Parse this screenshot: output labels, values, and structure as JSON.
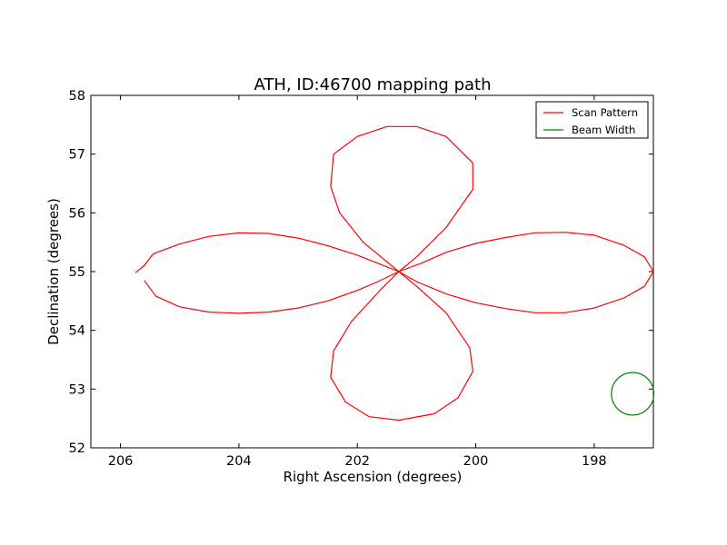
{
  "chart_data": {
    "type": "line",
    "title": "ATH, ID:46700 mapping path",
    "xlabel": "Right Ascension (degrees)",
    "ylabel": "Declination (degrees)",
    "xlim": [
      206.5,
      197
    ],
    "ylim": [
      52,
      58
    ],
    "x_inverted": true,
    "xticks": [
      206,
      204,
      202,
      200,
      198
    ],
    "yticks": [
      52,
      53,
      54,
      55,
      56,
      57,
      58
    ],
    "grid": false,
    "legend_position": "top-right",
    "series": [
      {
        "name": "Scan Pattern",
        "color": "#ff0000",
        "points": [
          [
            205.75,
            54.98
          ],
          [
            205.6,
            55.1
          ],
          [
            205.45,
            55.3
          ],
          [
            205.0,
            55.47
          ],
          [
            204.5,
            55.6
          ],
          [
            204.0,
            55.66
          ],
          [
            203.5,
            55.65
          ],
          [
            203.0,
            55.57
          ],
          [
            202.5,
            55.44
          ],
          [
            202.0,
            55.28
          ],
          [
            201.6,
            55.12
          ],
          [
            201.3,
            55.0
          ],
          [
            200.9,
            55.15
          ],
          [
            200.5,
            55.33
          ],
          [
            200.0,
            55.48
          ],
          [
            199.5,
            55.58
          ],
          [
            199.0,
            55.66
          ],
          [
            198.5,
            55.67
          ],
          [
            198.0,
            55.62
          ],
          [
            197.5,
            55.45
          ],
          [
            197.15,
            55.25
          ],
          [
            197.0,
            55.0
          ],
          [
            197.15,
            54.75
          ],
          [
            197.5,
            54.55
          ],
          [
            198.0,
            54.38
          ],
          [
            198.5,
            54.3
          ],
          [
            199.0,
            54.3
          ],
          [
            199.5,
            54.37
          ],
          [
            200.0,
            54.47
          ],
          [
            200.5,
            54.62
          ],
          [
            201.0,
            54.83
          ],
          [
            201.3,
            55.0
          ],
          [
            201.65,
            54.83
          ],
          [
            202.0,
            54.68
          ],
          [
            202.5,
            54.5
          ],
          [
            203.0,
            54.38
          ],
          [
            203.5,
            54.31
          ],
          [
            204.0,
            54.29
          ],
          [
            204.5,
            54.31
          ],
          [
            205.0,
            54.4
          ],
          [
            205.4,
            54.58
          ],
          [
            205.6,
            54.85
          ],
          [
            205.55,
            54.6
          ],
          [
            205.6,
            54.85
          ]
        ]
      },
      {
        "name": "Beam Width",
        "color": "#008000",
        "points": []
      }
    ],
    "loops": {
      "top": [
        [
          201.3,
          55.0
        ],
        [
          201.0,
          55.25
        ],
        [
          200.5,
          55.75
        ],
        [
          200.05,
          56.4
        ],
        [
          200.05,
          56.85
        ],
        [
          200.5,
          57.3
        ],
        [
          201.0,
          57.47
        ],
        [
          201.5,
          57.47
        ],
        [
          202.0,
          57.3
        ],
        [
          202.4,
          57.0
        ],
        [
          202.45,
          56.45
        ],
        [
          202.3,
          56.0
        ],
        [
          201.9,
          55.5
        ],
        [
          201.3,
          55.0
        ]
      ],
      "bottom": [
        [
          201.3,
          55.0
        ],
        [
          201.0,
          54.75
        ],
        [
          200.5,
          54.3
        ],
        [
          200.1,
          53.7
        ],
        [
          200.05,
          53.3
        ],
        [
          200.3,
          52.85
        ],
        [
          200.7,
          52.58
        ],
        [
          201.3,
          52.47
        ],
        [
          201.8,
          52.53
        ],
        [
          202.2,
          52.78
        ],
        [
          202.45,
          53.2
        ],
        [
          202.4,
          53.65
        ],
        [
          202.1,
          54.15
        ],
        [
          201.6,
          54.7
        ],
        [
          201.3,
          55.0
        ]
      ]
    },
    "beam": {
      "center_ra": 197.35,
      "center_dec": 52.92,
      "radius_deg": 0.36
    }
  }
}
